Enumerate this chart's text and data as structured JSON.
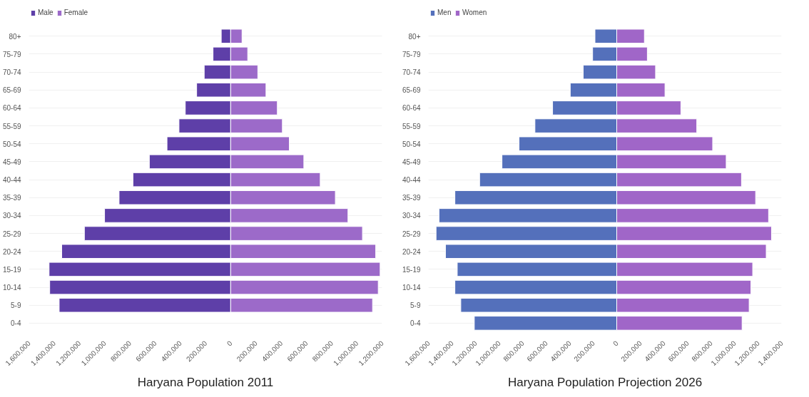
{
  "chart_data": [
    {
      "type": "bar",
      "orientation": "horizontal",
      "title": "Haryana Population 2011",
      "legend": "top left",
      "stacked": true,
      "grid": "y",
      "categories": [
        "80+",
        "75-79",
        "70-74",
        "65-69",
        "60-64",
        "55-59",
        "50-54",
        "45-49",
        "40-44",
        "35-39",
        "30-34",
        "25-29",
        "20-24",
        "15-19",
        "10-14",
        "5-9",
        "0-4"
      ],
      "xlim": [
        -1600000,
        1200000
      ],
      "xticks": [
        {
          "value": -1600000,
          "label": "1,600,000"
        },
        {
          "value": -1400000,
          "label": "1,400,000"
        },
        {
          "value": -1200000,
          "label": "1,200,000"
        },
        {
          "value": -1000000,
          "label": "1,000,000"
        },
        {
          "value": -800000,
          "label": "800,000"
        },
        {
          "value": -600000,
          "label": "600,000"
        },
        {
          "value": -400000,
          "label": "400,000"
        },
        {
          "value": -200000,
          "label": "200,000"
        },
        0,
        {
          "value": 200000,
          "label": "200,000"
        },
        {
          "value": 400000,
          "label": "400,000"
        },
        {
          "value": 600000,
          "label": "600,000"
        },
        {
          "value": 800000,
          "label": "800,000"
        },
        {
          "value": 1000000,
          "label": "1,000,000"
        },
        {
          "value": 1200000,
          "label": "1,200,000"
        }
      ],
      "series": [
        {
          "name": "Male",
          "color": "#5e3fa8",
          "values": [
            -75000,
            -140000,
            -210000,
            -270000,
            -360000,
            -410000,
            -505000,
            -645000,
            -775000,
            -885000,
            -1000000,
            -1160000,
            -1340000,
            -1440000,
            -1435000,
            -1360000,
            null
          ]
        },
        {
          "name": "Female",
          "color": "#9c6ac9",
          "values": [
            90000,
            135000,
            215000,
            280000,
            370000,
            410000,
            465000,
            580000,
            710000,
            830000,
            930000,
            1045000,
            1150000,
            1185000,
            1170000,
            1125000,
            null
          ]
        }
      ]
    },
    {
      "type": "bar",
      "orientation": "horizontal",
      "title": "Haryana Population Projection 2026",
      "legend": "top left",
      "stacked": true,
      "grid": "y",
      "categories": [
        "80+",
        "75-79",
        "70-74",
        "65-69",
        "60-64",
        "55-59",
        "50-54",
        "45-49",
        "40-44",
        "35-39",
        "30-34",
        "25-29",
        "20-24",
        "15-19",
        "10-14",
        "5-9",
        "0-4"
      ],
      "xlim": [
        -1600000,
        1400000
      ],
      "xticks": [
        {
          "value": -1600000,
          "label": "1,600,000"
        },
        {
          "value": -1400000,
          "label": "1,400,000"
        },
        {
          "value": -1200000,
          "label": "1,200,000"
        },
        {
          "value": -1000000,
          "label": "1,000,000"
        },
        {
          "value": -800000,
          "label": "800,000"
        },
        {
          "value": -600000,
          "label": "600,000"
        },
        {
          "value": -400000,
          "label": "400,000"
        },
        {
          "value": -200000,
          "label": "200,000"
        },
        0,
        {
          "value": 200000,
          "label": "200,000"
        },
        {
          "value": 400000,
          "label": "400,000"
        },
        {
          "value": 600000,
          "label": "600,000"
        },
        {
          "value": 800000,
          "label": "800,000"
        },
        {
          "value": 1000000,
          "label": "1,000,000"
        },
        {
          "value": 1200000,
          "label": "1,200,000"
        },
        {
          "value": 1400000,
          "label": "1,400,000"
        }
      ],
      "series": [
        {
          "name": "Men",
          "color": "#5470bb",
          "values": [
            -185000,
            -205000,
            -285000,
            -395000,
            -545000,
            -695000,
            -830000,
            -975000,
            -1165000,
            -1375000,
            -1510000,
            -1535000,
            -1455000,
            -1355000,
            -1375000,
            -1325000,
            -1210000
          ]
        },
        {
          "name": "Women",
          "color": "#a066c8",
          "values": [
            235000,
            260000,
            330000,
            410000,
            545000,
            680000,
            815000,
            930000,
            1060000,
            1180000,
            1290000,
            1315000,
            1270000,
            1155000,
            1140000,
            1125000,
            1065000
          ]
        }
      ]
    }
  ]
}
